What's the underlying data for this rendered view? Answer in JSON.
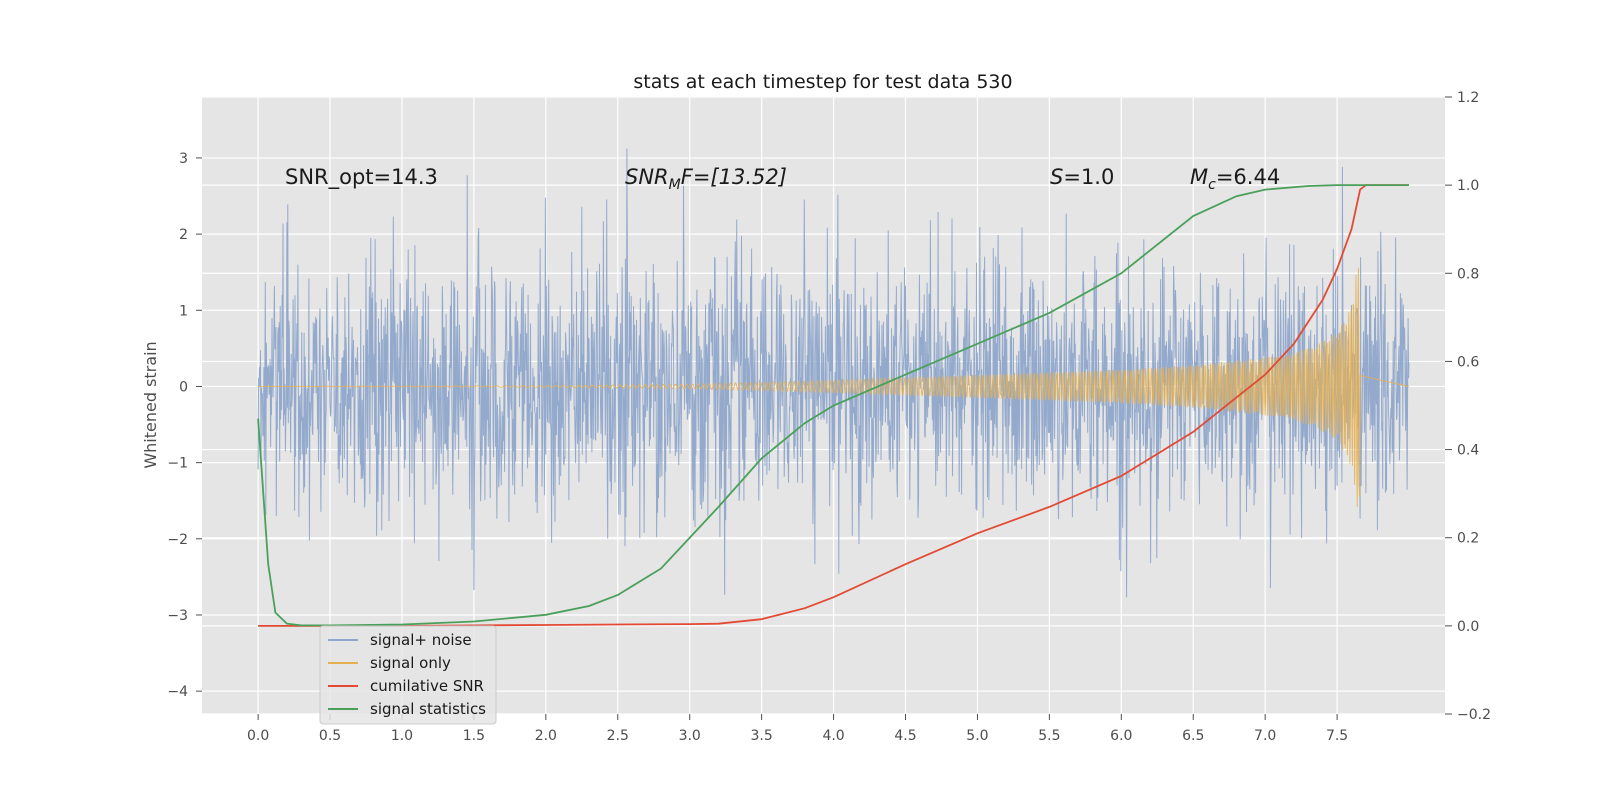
{
  "chart_data": {
    "type": "line",
    "title": "stats at each timestep for test data 530",
    "ylabel": "Whitened strain",
    "xlabel": "",
    "xlim": [
      -0.39,
      8.25
    ],
    "ylim": [
      -4.3,
      3.8
    ],
    "y2lim": [
      -0.2,
      1.2
    ],
    "grid": true,
    "legend_position": "lower-left",
    "x_ticks": [
      "0.0",
      "0.5",
      "1.0",
      "1.5",
      "2.0",
      "2.5",
      "3.0",
      "3.5",
      "4.0",
      "4.5",
      "5.0",
      "5.5",
      "6.0",
      "6.5",
      "7.0",
      "7.5"
    ],
    "x_tick_values": [
      0,
      0.5,
      1,
      1.5,
      2,
      2.5,
      3,
      3.5,
      4,
      4.5,
      5,
      5.5,
      6,
      6.5,
      7,
      7.5
    ],
    "y_ticks": [
      "−4",
      "−3",
      "−2",
      "−1",
      "0",
      "1",
      "2",
      "3"
    ],
    "y_tick_values": [
      -4,
      -3,
      -2,
      -1,
      0,
      1,
      2,
      3
    ],
    "y2_ticks": [
      "−0.2",
      "0.0",
      "0.2",
      "0.4",
      "0.6",
      "0.8",
      "1.0",
      "1.2"
    ],
    "y2_tick_values": [
      -0.2,
      0,
      0.2,
      0.4,
      0.6,
      0.8,
      1.0,
      1.2
    ],
    "annotations": {
      "snr_opt": "SNR_opt=14.3",
      "snr_mf_main": "SNR",
      "snr_mf_sub": "M",
      "snr_mf_rest": "F=[13.52]",
      "s_var": "S",
      "s_rest": "=1.0",
      "mc_var": "M",
      "mc_sub": "c",
      "mc_rest": "=6.44"
    },
    "series": [
      {
        "name": "signal+ noise",
        "color": "#8fa6cb",
        "axis": "left",
        "kind": "noise",
        "t_end": 8.0,
        "envelope": 1.6
      },
      {
        "name": "signal only",
        "color": "#e6b050",
        "axis": "left",
        "kind": "chirp",
        "t_end": 7.66,
        "envelope": {
          "x": [
            0,
            2.0,
            3.0,
            4.0,
            5.0,
            6.0,
            6.5,
            7.0,
            7.3,
            7.5,
            7.6,
            7.64,
            7.66
          ],
          "y": [
            0.0,
            0.01,
            0.03,
            0.08,
            0.15,
            0.22,
            0.28,
            0.38,
            0.5,
            0.7,
            1.05,
            1.6,
            1.7
          ]
        }
      },
      {
        "name": "cumilative SNR",
        "color": "#e24a33",
        "axis": "right",
        "x": [
          0,
          0.5,
          1.0,
          1.5,
          2.0,
          2.5,
          3.0,
          3.2,
          3.5,
          3.8,
          4.0,
          4.5,
          5.0,
          5.5,
          6.0,
          6.5,
          7.0,
          7.2,
          7.4,
          7.5,
          7.6,
          7.66,
          7.7,
          8.0
        ],
        "y": [
          0.0,
          0.0,
          0.0,
          0.001,
          0.002,
          0.003,
          0.004,
          0.005,
          0.015,
          0.04,
          0.065,
          0.14,
          0.21,
          0.27,
          0.34,
          0.44,
          0.57,
          0.64,
          0.74,
          0.81,
          0.9,
          0.99,
          1.0,
          1.0
        ]
      },
      {
        "name": "signal statistics",
        "color": "#4aa05a",
        "axis": "right",
        "x": [
          0,
          0.07,
          0.12,
          0.2,
          0.3,
          0.5,
          1.0,
          1.5,
          2.0,
          2.3,
          2.5,
          2.8,
          3.0,
          3.2,
          3.5,
          3.8,
          4.0,
          4.5,
          5.0,
          5.5,
          6.0,
          6.5,
          6.8,
          7.0,
          7.3,
          7.5,
          7.66,
          8.0
        ],
        "y": [
          0.47,
          0.14,
          0.03,
          0.005,
          0.001,
          0.001,
          0.003,
          0.01,
          0.025,
          0.045,
          0.07,
          0.13,
          0.2,
          0.27,
          0.38,
          0.46,
          0.5,
          0.57,
          0.64,
          0.71,
          0.8,
          0.93,
          0.975,
          0.99,
          0.998,
          1.0,
          1.0,
          1.0
        ]
      }
    ]
  }
}
